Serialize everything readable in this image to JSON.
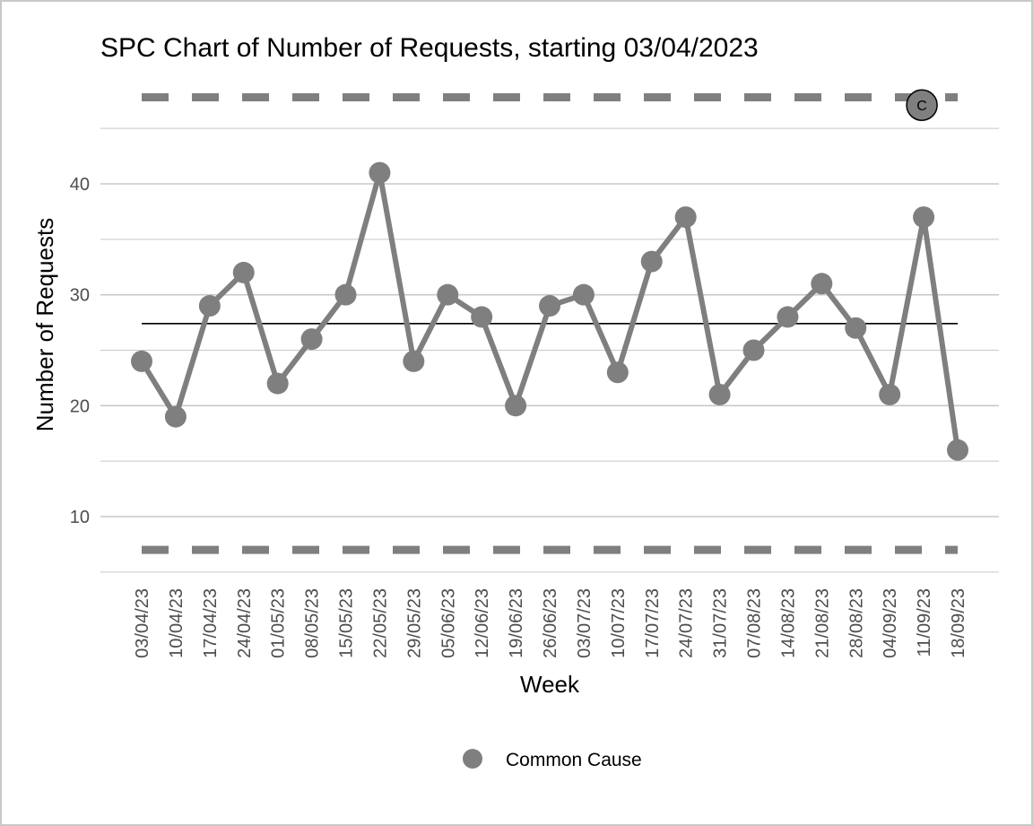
{
  "chart_data": {
    "type": "line",
    "title": "SPC Chart of Number of Requests, starting 03/04/2023",
    "xlabel": "Week",
    "ylabel": "Number of Requests",
    "x": [
      "03/04/23",
      "10/04/23",
      "17/04/23",
      "24/04/23",
      "01/05/23",
      "08/05/23",
      "15/05/23",
      "22/05/23",
      "29/05/23",
      "05/06/23",
      "12/06/23",
      "19/06/23",
      "26/06/23",
      "03/07/23",
      "10/07/23",
      "17/07/23",
      "24/07/23",
      "31/07/23",
      "07/08/23",
      "14/08/23",
      "21/08/23",
      "28/08/23",
      "04/09/23",
      "11/09/23",
      "18/09/23"
    ],
    "series": [
      {
        "name": "Common Cause",
        "values": [
          24,
          19,
          29,
          32,
          22,
          26,
          30,
          41,
          24,
          30,
          28,
          20,
          29,
          30,
          23,
          33,
          37,
          21,
          25,
          28,
          31,
          27,
          21,
          37,
          16
        ]
      }
    ],
    "center_line": 27.4,
    "upper_control_limit": 47.8,
    "lower_control_limit": 7.0,
    "ylim": [
      5,
      50
    ],
    "yticks": [
      10,
      20,
      30,
      40
    ],
    "grid": true,
    "legend_position": "bottom",
    "annotation": {
      "label": "C",
      "x_index": 23,
      "y": 47.1
    },
    "colors": {
      "series": "#7f7f7f",
      "center_line": "#000000",
      "limits": "#7f7f7f",
      "grid": "#c8c8c8",
      "badge_fill": "#7f7f7f"
    }
  }
}
